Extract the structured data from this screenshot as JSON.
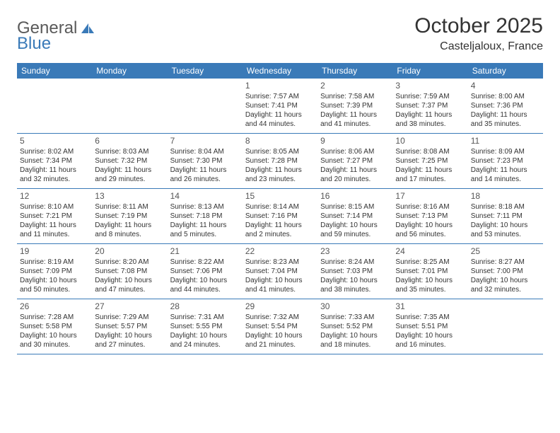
{
  "logo": {
    "text_a": "General",
    "text_b": "Blue"
  },
  "title": "October 2025",
  "location": "Casteljaloux, France",
  "colors": {
    "header_bg": "#3a7ab8",
    "header_text": "#ffffff",
    "border": "#3a7ab8",
    "text": "#333333",
    "logo_gray": "#5a5a5a",
    "logo_blue": "#3a7ab8",
    "background": "#ffffff"
  },
  "typography": {
    "title_fontsize": 30,
    "location_fontsize": 16,
    "logo_fontsize": 24,
    "dayheader_fontsize": 12,
    "daynum_fontsize": 12,
    "cell_fontsize": 10
  },
  "day_headers": [
    "Sunday",
    "Monday",
    "Tuesday",
    "Wednesday",
    "Thursday",
    "Friday",
    "Saturday"
  ],
  "weeks": [
    [
      null,
      null,
      null,
      {
        "n": "1",
        "sr": "7:57 AM",
        "ss": "7:41 PM",
        "dl": "11 hours and 44 minutes."
      },
      {
        "n": "2",
        "sr": "7:58 AM",
        "ss": "7:39 PM",
        "dl": "11 hours and 41 minutes."
      },
      {
        "n": "3",
        "sr": "7:59 AM",
        "ss": "7:37 PM",
        "dl": "11 hours and 38 minutes."
      },
      {
        "n": "4",
        "sr": "8:00 AM",
        "ss": "7:36 PM",
        "dl": "11 hours and 35 minutes."
      }
    ],
    [
      {
        "n": "5",
        "sr": "8:02 AM",
        "ss": "7:34 PM",
        "dl": "11 hours and 32 minutes."
      },
      {
        "n": "6",
        "sr": "8:03 AM",
        "ss": "7:32 PM",
        "dl": "11 hours and 29 minutes."
      },
      {
        "n": "7",
        "sr": "8:04 AM",
        "ss": "7:30 PM",
        "dl": "11 hours and 26 minutes."
      },
      {
        "n": "8",
        "sr": "8:05 AM",
        "ss": "7:28 PM",
        "dl": "11 hours and 23 minutes."
      },
      {
        "n": "9",
        "sr": "8:06 AM",
        "ss": "7:27 PM",
        "dl": "11 hours and 20 minutes."
      },
      {
        "n": "10",
        "sr": "8:08 AM",
        "ss": "7:25 PM",
        "dl": "11 hours and 17 minutes."
      },
      {
        "n": "11",
        "sr": "8:09 AM",
        "ss": "7:23 PM",
        "dl": "11 hours and 14 minutes."
      }
    ],
    [
      {
        "n": "12",
        "sr": "8:10 AM",
        "ss": "7:21 PM",
        "dl": "11 hours and 11 minutes."
      },
      {
        "n": "13",
        "sr": "8:11 AM",
        "ss": "7:19 PM",
        "dl": "11 hours and 8 minutes."
      },
      {
        "n": "14",
        "sr": "8:13 AM",
        "ss": "7:18 PM",
        "dl": "11 hours and 5 minutes."
      },
      {
        "n": "15",
        "sr": "8:14 AM",
        "ss": "7:16 PM",
        "dl": "11 hours and 2 minutes."
      },
      {
        "n": "16",
        "sr": "8:15 AM",
        "ss": "7:14 PM",
        "dl": "10 hours and 59 minutes."
      },
      {
        "n": "17",
        "sr": "8:16 AM",
        "ss": "7:13 PM",
        "dl": "10 hours and 56 minutes."
      },
      {
        "n": "18",
        "sr": "8:18 AM",
        "ss": "7:11 PM",
        "dl": "10 hours and 53 minutes."
      }
    ],
    [
      {
        "n": "19",
        "sr": "8:19 AM",
        "ss": "7:09 PM",
        "dl": "10 hours and 50 minutes."
      },
      {
        "n": "20",
        "sr": "8:20 AM",
        "ss": "7:08 PM",
        "dl": "10 hours and 47 minutes."
      },
      {
        "n": "21",
        "sr": "8:22 AM",
        "ss": "7:06 PM",
        "dl": "10 hours and 44 minutes."
      },
      {
        "n": "22",
        "sr": "8:23 AM",
        "ss": "7:04 PM",
        "dl": "10 hours and 41 minutes."
      },
      {
        "n": "23",
        "sr": "8:24 AM",
        "ss": "7:03 PM",
        "dl": "10 hours and 38 minutes."
      },
      {
        "n": "24",
        "sr": "8:25 AM",
        "ss": "7:01 PM",
        "dl": "10 hours and 35 minutes."
      },
      {
        "n": "25",
        "sr": "8:27 AM",
        "ss": "7:00 PM",
        "dl": "10 hours and 32 minutes."
      }
    ],
    [
      {
        "n": "26",
        "sr": "7:28 AM",
        "ss": "5:58 PM",
        "dl": "10 hours and 30 minutes."
      },
      {
        "n": "27",
        "sr": "7:29 AM",
        "ss": "5:57 PM",
        "dl": "10 hours and 27 minutes."
      },
      {
        "n": "28",
        "sr": "7:31 AM",
        "ss": "5:55 PM",
        "dl": "10 hours and 24 minutes."
      },
      {
        "n": "29",
        "sr": "7:32 AM",
        "ss": "5:54 PM",
        "dl": "10 hours and 21 minutes."
      },
      {
        "n": "30",
        "sr": "7:33 AM",
        "ss": "5:52 PM",
        "dl": "10 hours and 18 minutes."
      },
      {
        "n": "31",
        "sr": "7:35 AM",
        "ss": "5:51 PM",
        "dl": "10 hours and 16 minutes."
      },
      null
    ]
  ],
  "labels": {
    "sunrise": "Sunrise:",
    "sunset": "Sunset:",
    "daylight": "Daylight:"
  }
}
